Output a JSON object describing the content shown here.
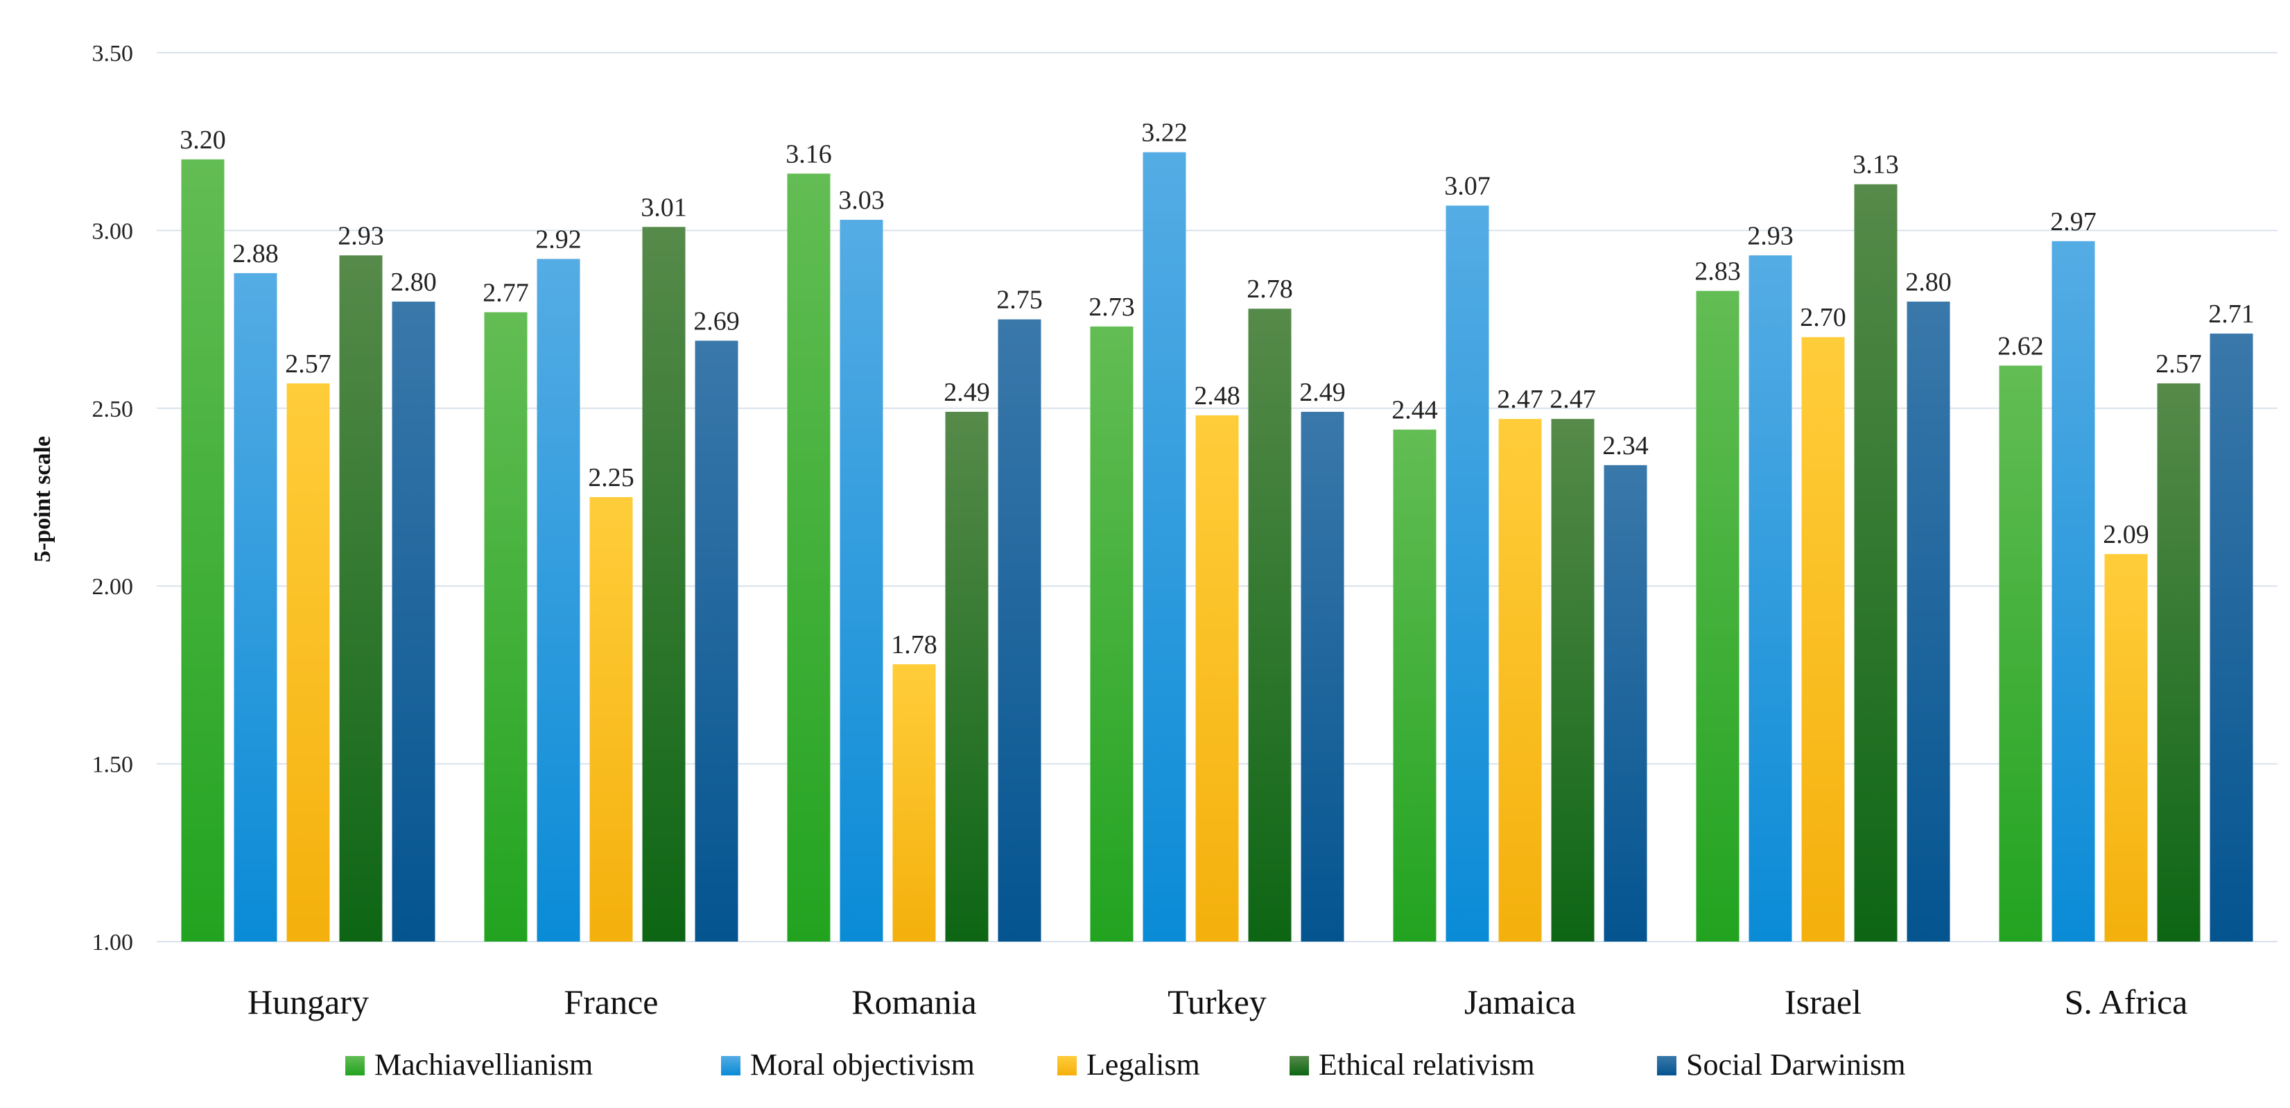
{
  "chart_data": {
    "type": "bar",
    "title": "",
    "xlabel": "",
    "ylabel": "5-point scale",
    "ylim": [
      1.0,
      3.5
    ],
    "yticks": [
      "1.00",
      "1.50",
      "2.00",
      "2.50",
      "3.00",
      "3.50"
    ],
    "grid": true,
    "legend_position": "bottom",
    "categories": [
      "Hungary",
      "France",
      "Romania",
      "Turkey",
      "Jamaica",
      "Israel",
      "S. Africa"
    ],
    "series": [
      {
        "name": "Machiavellianism",
        "color_top": "#63bd54",
        "color_bottom": "#22a320",
        "values": [
          3.2,
          2.77,
          3.16,
          2.73,
          2.44,
          2.83,
          2.62
        ],
        "labels": [
          "3.20",
          "2.77",
          "3.16",
          "2.73",
          "2.44",
          "2.83",
          "2.62"
        ]
      },
      {
        "name": "Moral objectivism",
        "color_top": "#55ace4",
        "color_bottom": "#0a8bd6",
        "values": [
          2.88,
          2.92,
          3.03,
          3.22,
          3.07,
          2.93,
          2.97
        ],
        "labels": [
          "2.88",
          "2.92",
          "3.03",
          "3.22",
          "3.07",
          "2.93",
          "2.97"
        ]
      },
      {
        "name": "Legalism",
        "color_top": "#ffcd3a",
        "color_bottom": "#f4b00c",
        "values": [
          2.57,
          2.25,
          1.78,
          2.48,
          2.47,
          2.7,
          2.09
        ],
        "labels": [
          "2.57",
          "2.25",
          "1.78",
          "2.48",
          "2.47",
          "2.70",
          "2.09"
        ]
      },
      {
        "name": "Ethical relativism",
        "color_top": "#568a4a",
        "color_bottom": "#0d6614",
        "values": [
          2.93,
          3.01,
          2.49,
          2.78,
          2.47,
          3.13,
          2.57
        ],
        "labels": [
          "2.93",
          "3.01",
          "2.49",
          "2.78",
          "2.47",
          "3.13",
          "2.57"
        ]
      },
      {
        "name": "Social Darwinism",
        "color_top": "#3a78aa",
        "color_bottom": "#045490",
        "values": [
          2.8,
          2.69,
          2.75,
          2.49,
          2.34,
          2.8,
          2.71
        ],
        "labels": [
          "2.80",
          "2.69",
          "2.75",
          "2.49",
          "2.34",
          "2.80",
          "2.71"
        ]
      }
    ]
  }
}
